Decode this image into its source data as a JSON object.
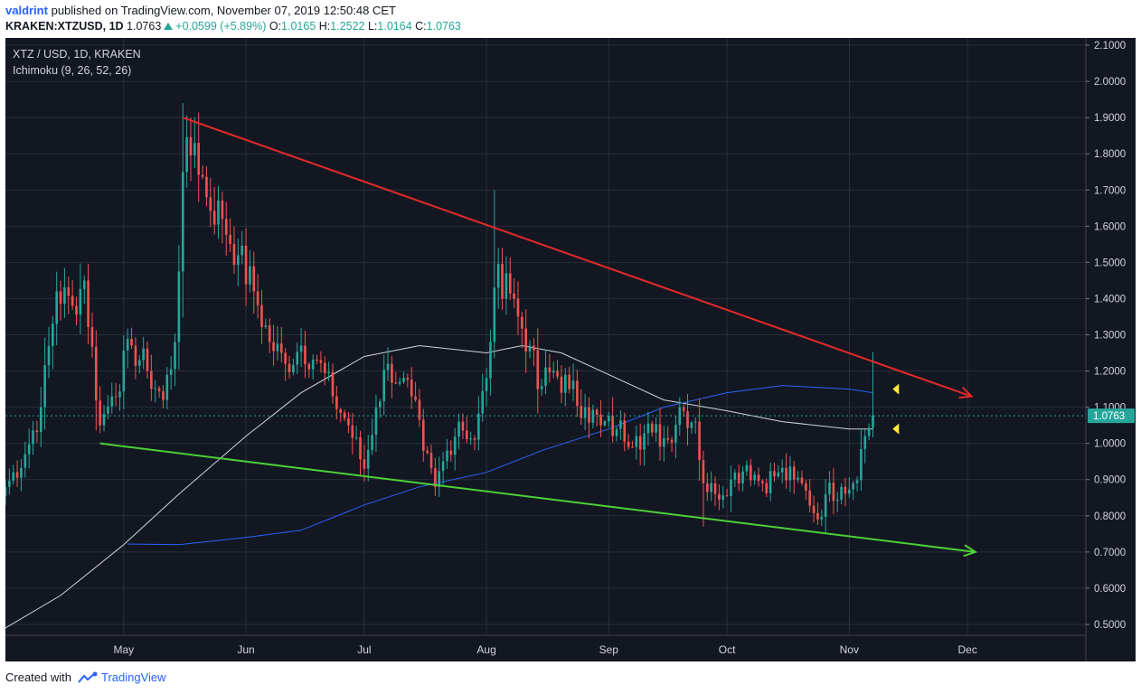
{
  "header": {
    "user": "valdrint",
    "published_text": "published on TradingView.com, November 07, 2019 12:50:48 CET",
    "symbol": "KRAKEN:XTZUSD, 1D",
    "last": "1.0763",
    "change": "+0.0599 (+5.89%)",
    "o_label": "O:",
    "o_value": "1.0165",
    "h_label": "H:",
    "h_value": "1.2522",
    "l_label": "L:",
    "l_value": "1.0164",
    "c_label": "C:",
    "c_value": "1.0763"
  },
  "legend": {
    "title": "XTZ / USD, 1D, KRAKEN",
    "indicator": "Ichimoku (9, 26, 52, 26)"
  },
  "footer": {
    "created_with": "Created with",
    "brand": "TradingView"
  },
  "colors": {
    "background": "#131722",
    "grid": "#2a2e39",
    "up": "#26a69a",
    "down": "#ef5350",
    "resistance": "#e52a2a",
    "support": "#4cd137",
    "ma_white": "#d1d4dc",
    "ma_blue": "#2962ff",
    "price_line": "#26a69a",
    "marker": "#ffeb3b"
  },
  "chart_data": {
    "type": "candlestick",
    "symbol": "XTZ / USD",
    "interval": "1D",
    "exchange": "KRAKEN",
    "xlim": [
      "2019-04-01",
      "2019-12-31"
    ],
    "ylim": [
      0.47,
      2.12
    ],
    "y_ticks": [
      "2.1000",
      "2.0000",
      "1.9000",
      "1.8000",
      "1.7000",
      "1.6000",
      "1.5000",
      "1.4000",
      "1.3000",
      "1.2000",
      "1.1000",
      "1.0000",
      "0.9000",
      "0.8000",
      "0.7000",
      "0.6000",
      "0.5000"
    ],
    "x_ticks": [
      {
        "label": "May",
        "date": "2019-05-01"
      },
      {
        "label": "Jun",
        "date": "2019-06-01"
      },
      {
        "label": "Jul",
        "date": "2019-07-01"
      },
      {
        "label": "Aug",
        "date": "2019-08-01"
      },
      {
        "label": "Sep",
        "date": "2019-09-01"
      },
      {
        "label": "Oct",
        "date": "2019-10-01"
      },
      {
        "label": "Nov",
        "date": "2019-11-01"
      },
      {
        "label": "Dec",
        "date": "2019-12-01"
      }
    ],
    "current_price": "1.0763",
    "close_anchors": [
      [
        "2019-04-01",
        0.88
      ],
      [
        "2019-04-06",
        0.97
      ],
      [
        "2019-04-10",
        1.1
      ],
      [
        "2019-04-14",
        1.42
      ],
      [
        "2019-04-18",
        1.38
      ],
      [
        "2019-04-21",
        1.45
      ],
      [
        "2019-04-25",
        1.05
      ],
      [
        "2019-04-28",
        1.13
      ],
      [
        "2019-05-03",
        1.27
      ],
      [
        "2019-05-07",
        1.2
      ],
      [
        "2019-05-11",
        1.12
      ],
      [
        "2019-05-14",
        1.28
      ],
      [
        "2019-05-16",
        1.75
      ],
      [
        "2019-05-19",
        1.83
      ],
      [
        "2019-05-22",
        1.68
      ],
      [
        "2019-05-26",
        1.62
      ],
      [
        "2019-05-30",
        1.52
      ],
      [
        "2019-06-03",
        1.42
      ],
      [
        "2019-06-07",
        1.28
      ],
      [
        "2019-06-11",
        1.22
      ],
      [
        "2019-06-15",
        1.27
      ],
      [
        "2019-06-19",
        1.23
      ],
      [
        "2019-06-23",
        1.13
      ],
      [
        "2019-06-27",
        1.05
      ],
      [
        "2019-07-01",
        0.93
      ],
      [
        "2019-07-04",
        1.1
      ],
      [
        "2019-07-07",
        1.22
      ],
      [
        "2019-07-10",
        1.17
      ],
      [
        "2019-07-13",
        1.13
      ],
      [
        "2019-07-16",
        0.98
      ],
      [
        "2019-07-19",
        0.88
      ],
      [
        "2019-07-22",
        0.98
      ],
      [
        "2019-07-25",
        1.06
      ],
      [
        "2019-07-29",
        1.01
      ],
      [
        "2019-08-01",
        1.18
      ],
      [
        "2019-08-03",
        1.43
      ],
      [
        "2019-08-06",
        1.47
      ],
      [
        "2019-08-09",
        1.35
      ],
      [
        "2019-08-12",
        1.27
      ],
      [
        "2019-08-14",
        1.15
      ],
      [
        "2019-08-18",
        1.2
      ],
      [
        "2019-08-22",
        1.15
      ],
      [
        "2019-08-26",
        1.1
      ],
      [
        "2019-08-30",
        1.05
      ],
      [
        "2019-09-03",
        1.04
      ],
      [
        "2019-09-08",
        1.02
      ],
      [
        "2019-09-12",
        1.03
      ],
      [
        "2019-09-16",
        1.01
      ],
      [
        "2019-09-19",
        1.1
      ],
      [
        "2019-09-23",
        1.06
      ],
      [
        "2019-09-25",
        0.89
      ],
      [
        "2019-09-28",
        0.86
      ],
      [
        "2019-10-02",
        0.9
      ],
      [
        "2019-10-06",
        0.94
      ],
      [
        "2019-10-10",
        0.89
      ],
      [
        "2019-10-14",
        0.92
      ],
      [
        "2019-10-18",
        0.9
      ],
      [
        "2019-10-21",
        0.87
      ],
      [
        "2019-10-24",
        0.79
      ],
      [
        "2019-10-26",
        0.86
      ],
      [
        "2019-10-30",
        0.88
      ],
      [
        "2019-11-02",
        0.89
      ],
      [
        "2019-11-05",
        1.02
      ],
      [
        "2019-11-07",
        1.0763
      ]
    ],
    "ma_white": [
      [
        "2019-04-01",
        0.49
      ],
      [
        "2019-04-15",
        0.58
      ],
      [
        "2019-05-01",
        0.72
      ],
      [
        "2019-05-15",
        0.86
      ],
      [
        "2019-06-01",
        1.02
      ],
      [
        "2019-06-15",
        1.14
      ],
      [
        "2019-07-01",
        1.24
      ],
      [
        "2019-07-15",
        1.27
      ],
      [
        "2019-08-01",
        1.25
      ],
      [
        "2019-08-10",
        1.27
      ],
      [
        "2019-08-20",
        1.25
      ],
      [
        "2019-09-01",
        1.19
      ],
      [
        "2019-09-15",
        1.12
      ],
      [
        "2019-10-01",
        1.09
      ],
      [
        "2019-10-15",
        1.06
      ],
      [
        "2019-11-01",
        1.04
      ],
      [
        "2019-11-07",
        1.04
      ]
    ],
    "ma_blue": [
      [
        "2019-05-02",
        0.722
      ],
      [
        "2019-05-15",
        0.72
      ],
      [
        "2019-06-01",
        0.74
      ],
      [
        "2019-06-15",
        0.76
      ],
      [
        "2019-07-01",
        0.83
      ],
      [
        "2019-07-15",
        0.88
      ],
      [
        "2019-08-01",
        0.92
      ],
      [
        "2019-08-15",
        0.98
      ],
      [
        "2019-09-01",
        1.04
      ],
      [
        "2019-09-15",
        1.1
      ],
      [
        "2019-10-01",
        1.14
      ],
      [
        "2019-10-15",
        1.16
      ],
      [
        "2019-11-01",
        1.15
      ],
      [
        "2019-11-07",
        1.14
      ]
    ],
    "trendlines": [
      {
        "name": "resistance",
        "from": [
          "2019-05-16",
          1.9
        ],
        "to": [
          "2019-12-02",
          1.13
        ],
        "arrow": true
      },
      {
        "name": "support",
        "from": [
          "2019-04-25",
          1.0
        ],
        "to": [
          "2019-12-03",
          0.7
        ],
        "arrow": true
      }
    ],
    "markers": [
      {
        "shape": "triangle-left",
        "at": [
          "2019-11-12",
          1.15
        ]
      },
      {
        "shape": "triangle-left",
        "at": [
          "2019-11-12",
          1.04
        ]
      }
    ],
    "grid": true
  }
}
